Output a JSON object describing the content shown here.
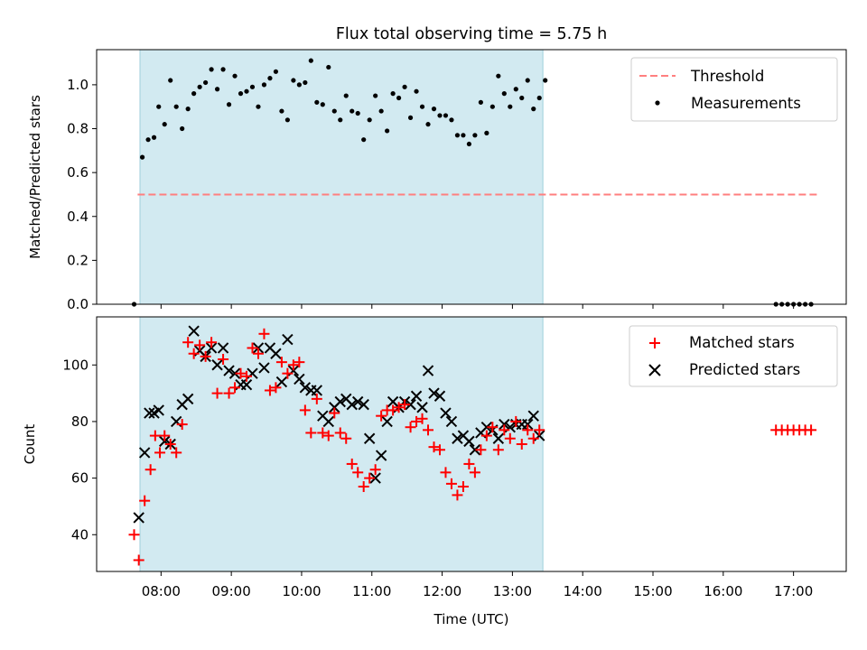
{
  "chart_data": [
    {
      "type": "scatter",
      "title": "Flux total observing time = 5.75 h",
      "xlabel": "",
      "ylabel": "Matched/Predicted stars",
      "ylim": [
        0,
        1.16
      ],
      "yticks": [
        0.0,
        0.2,
        0.4,
        0.6,
        0.8,
        1.0
      ],
      "ytick_labels": [
        "0.0",
        "0.2",
        "0.4",
        "0.6",
        "0.8",
        "1.0"
      ],
      "legend": "upper right",
      "shaded_span": {
        "start": "07:42",
        "end": "13:26",
        "color": "#add8e6"
      },
      "threshold": {
        "name": "Threshold",
        "value": 0.5,
        "x_start": "07:40",
        "x_end": "17:20",
        "color": "#ff7f7f",
        "style": "dashed"
      },
      "series": [
        {
          "name": "Measurements",
          "color": "#000000",
          "marker": "dot",
          "x": [
            "07:37",
            "07:44",
            "07:49",
            "07:54",
            "07:58",
            "08:03",
            "08:08",
            "08:13",
            "08:18",
            "08:23",
            "08:28",
            "08:33",
            "08:38",
            "08:43",
            "08:48",
            "08:53",
            "08:58",
            "09:03",
            "09:08",
            "09:13",
            "09:18",
            "09:23",
            "09:28",
            "09:33",
            "09:38",
            "09:43",
            "09:48",
            "09:53",
            "09:58",
            "10:03",
            "10:08",
            "10:13",
            "10:18",
            "10:23",
            "10:28",
            "10:33",
            "10:38",
            "10:43",
            "10:48",
            "10:53",
            "10:58",
            "11:03",
            "11:08",
            "11:13",
            "11:18",
            "11:23",
            "11:28",
            "11:33",
            "11:38",
            "11:43",
            "11:48",
            "11:53",
            "11:58",
            "12:03",
            "12:08",
            "12:13",
            "12:18",
            "12:23",
            "12:28",
            "12:33",
            "12:38",
            "12:43",
            "12:48",
            "12:53",
            "12:58",
            "13:03",
            "13:08",
            "13:13",
            "13:18",
            "13:23",
            "13:28",
            "16:45",
            "16:50",
            "16:55",
            "17:00",
            "17:05",
            "17:10",
            "17:15"
          ],
          "y": [
            0.0,
            0.67,
            0.75,
            0.76,
            0.9,
            0.82,
            1.02,
            0.9,
            0.8,
            0.89,
            0.96,
            0.99,
            1.01,
            1.07,
            0.98,
            1.07,
            0.91,
            1.04,
            0.96,
            0.97,
            0.99,
            0.9,
            1.0,
            1.03,
            1.06,
            0.88,
            0.84,
            1.02,
            1.0,
            1.01,
            1.11,
            0.92,
            0.91,
            1.08,
            0.88,
            0.84,
            0.95,
            0.88,
            0.87,
            0.75,
            0.84,
            0.95,
            0.88,
            0.79,
            0.96,
            0.94,
            0.99,
            0.85,
            0.97,
            0.9,
            0.82,
            0.89,
            0.86,
            0.86,
            0.84,
            0.77,
            0.77,
            0.73,
            0.77,
            0.92,
            0.78,
            0.9,
            1.04,
            0.96,
            0.9,
            0.98,
            0.94,
            1.02,
            0.89,
            0.94,
            1.02,
            0.0,
            0.0,
            0.0,
            0.0,
            0.0,
            0.0,
            0.0
          ]
        }
      ]
    },
    {
      "type": "scatter",
      "title": "",
      "xlabel": "Time (UTC)",
      "ylabel": "Count",
      "ylim": [
        27,
        117
      ],
      "yticks": [
        40,
        60,
        80,
        100
      ],
      "ytick_labels": [
        "40",
        "60",
        "80",
        "100"
      ],
      "xlim": [
        "07:05",
        "17:45"
      ],
      "xticks": [
        "08:00",
        "09:00",
        "10:00",
        "11:00",
        "12:00",
        "13:00",
        "14:00",
        "15:00",
        "16:00",
        "17:00"
      ],
      "xtick_labels": [
        "08:00",
        "09:00",
        "10:00",
        "11:00",
        "12:00",
        "13:00",
        "14:00",
        "15:00",
        "16:00",
        "17:00"
      ],
      "legend": "upper right",
      "shaded_span": {
        "start": "07:42",
        "end": "13:26",
        "color": "#add8e6"
      },
      "series": [
        {
          "name": "Matched stars",
          "color": "#ff0000",
          "marker": "plus",
          "x": [
            "07:37",
            "07:41",
            "07:46",
            "07:51",
            "07:55",
            "07:59",
            "08:03",
            "08:08",
            "08:13",
            "08:18",
            "08:23",
            "08:28",
            "08:33",
            "08:38",
            "08:43",
            "08:48",
            "08:53",
            "08:58",
            "09:03",
            "09:08",
            "09:13",
            "09:18",
            "09:23",
            "09:28",
            "09:33",
            "09:38",
            "09:43",
            "09:48",
            "09:53",
            "09:58",
            "10:03",
            "10:08",
            "10:13",
            "10:18",
            "10:23",
            "10:28",
            "10:33",
            "10:38",
            "10:43",
            "10:48",
            "10:53",
            "10:58",
            "11:03",
            "11:08",
            "11:13",
            "11:18",
            "11:23",
            "11:28",
            "11:33",
            "11:38",
            "11:43",
            "11:48",
            "11:53",
            "11:58",
            "12:03",
            "12:08",
            "12:13",
            "12:18",
            "12:23",
            "12:28",
            "12:33",
            "12:38",
            "12:43",
            "12:48",
            "12:53",
            "12:58",
            "13:03",
            "13:08",
            "13:13",
            "13:18",
            "13:23",
            "16:45",
            "16:50",
            "16:55",
            "17:00",
            "17:05",
            "17:10",
            "17:15"
          ],
          "y": [
            40,
            31,
            52,
            63,
            75,
            69,
            75,
            72,
            69,
            79,
            108,
            104,
            107,
            103,
            108,
            90,
            102,
            90,
            92,
            97,
            96,
            106,
            104,
            111,
            91,
            92,
            101,
            97,
            100,
            101,
            84,
            76,
            88,
            76,
            75,
            83,
            76,
            74,
            65,
            62,
            57,
            60,
            63,
            82,
            84,
            84,
            85,
            86,
            78,
            80,
            81,
            77,
            71,
            70,
            62,
            58,
            54,
            57,
            65,
            62,
            70,
            75,
            78,
            70,
            77,
            74,
            80,
            72,
            77,
            74,
            77,
            77,
            77,
            77,
            77,
            77,
            77,
            77
          ]
        },
        {
          "name": "Predicted stars",
          "color": "#000000",
          "marker": "x",
          "x": [
            "07:41",
            "07:46",
            "07:50",
            "07:54",
            "07:58",
            "08:03",
            "08:08",
            "08:13",
            "08:18",
            "08:23",
            "08:28",
            "08:33",
            "08:38",
            "08:43",
            "08:48",
            "08:53",
            "08:58",
            "09:03",
            "09:08",
            "09:13",
            "09:18",
            "09:23",
            "09:28",
            "09:33",
            "09:38",
            "09:43",
            "09:48",
            "09:53",
            "09:58",
            "10:03",
            "10:08",
            "10:13",
            "10:18",
            "10:23",
            "10:28",
            "10:33",
            "10:38",
            "10:43",
            "10:48",
            "10:53",
            "10:58",
            "11:03",
            "11:08",
            "11:13",
            "11:18",
            "11:23",
            "11:28",
            "11:33",
            "11:38",
            "11:43",
            "11:48",
            "11:53",
            "11:58",
            "12:03",
            "12:08",
            "12:13",
            "12:18",
            "12:23",
            "12:28",
            "12:33",
            "12:38",
            "12:43",
            "12:48",
            "12:53",
            "12:58",
            "13:03",
            "13:08",
            "13:13",
            "13:18",
            "13:23"
          ],
          "y": [
            46,
            69,
            83,
            83,
            84,
            73,
            72,
            80,
            86,
            88,
            112,
            105,
            103,
            106,
            100,
            106,
            98,
            97,
            93,
            93,
            97,
            106,
            99,
            106,
            104,
            94,
            109,
            98,
            95,
            92,
            91,
            91,
            82,
            80,
            85,
            87,
            88,
            86,
            87,
            86,
            74,
            60,
            68,
            80,
            87,
            85,
            87,
            86,
            89,
            85,
            98,
            90,
            89,
            83,
            80,
            74,
            75,
            73,
            70,
            76,
            78,
            77,
            74,
            79,
            78,
            79,
            79,
            79,
            82,
            75
          ]
        }
      ]
    }
  ]
}
